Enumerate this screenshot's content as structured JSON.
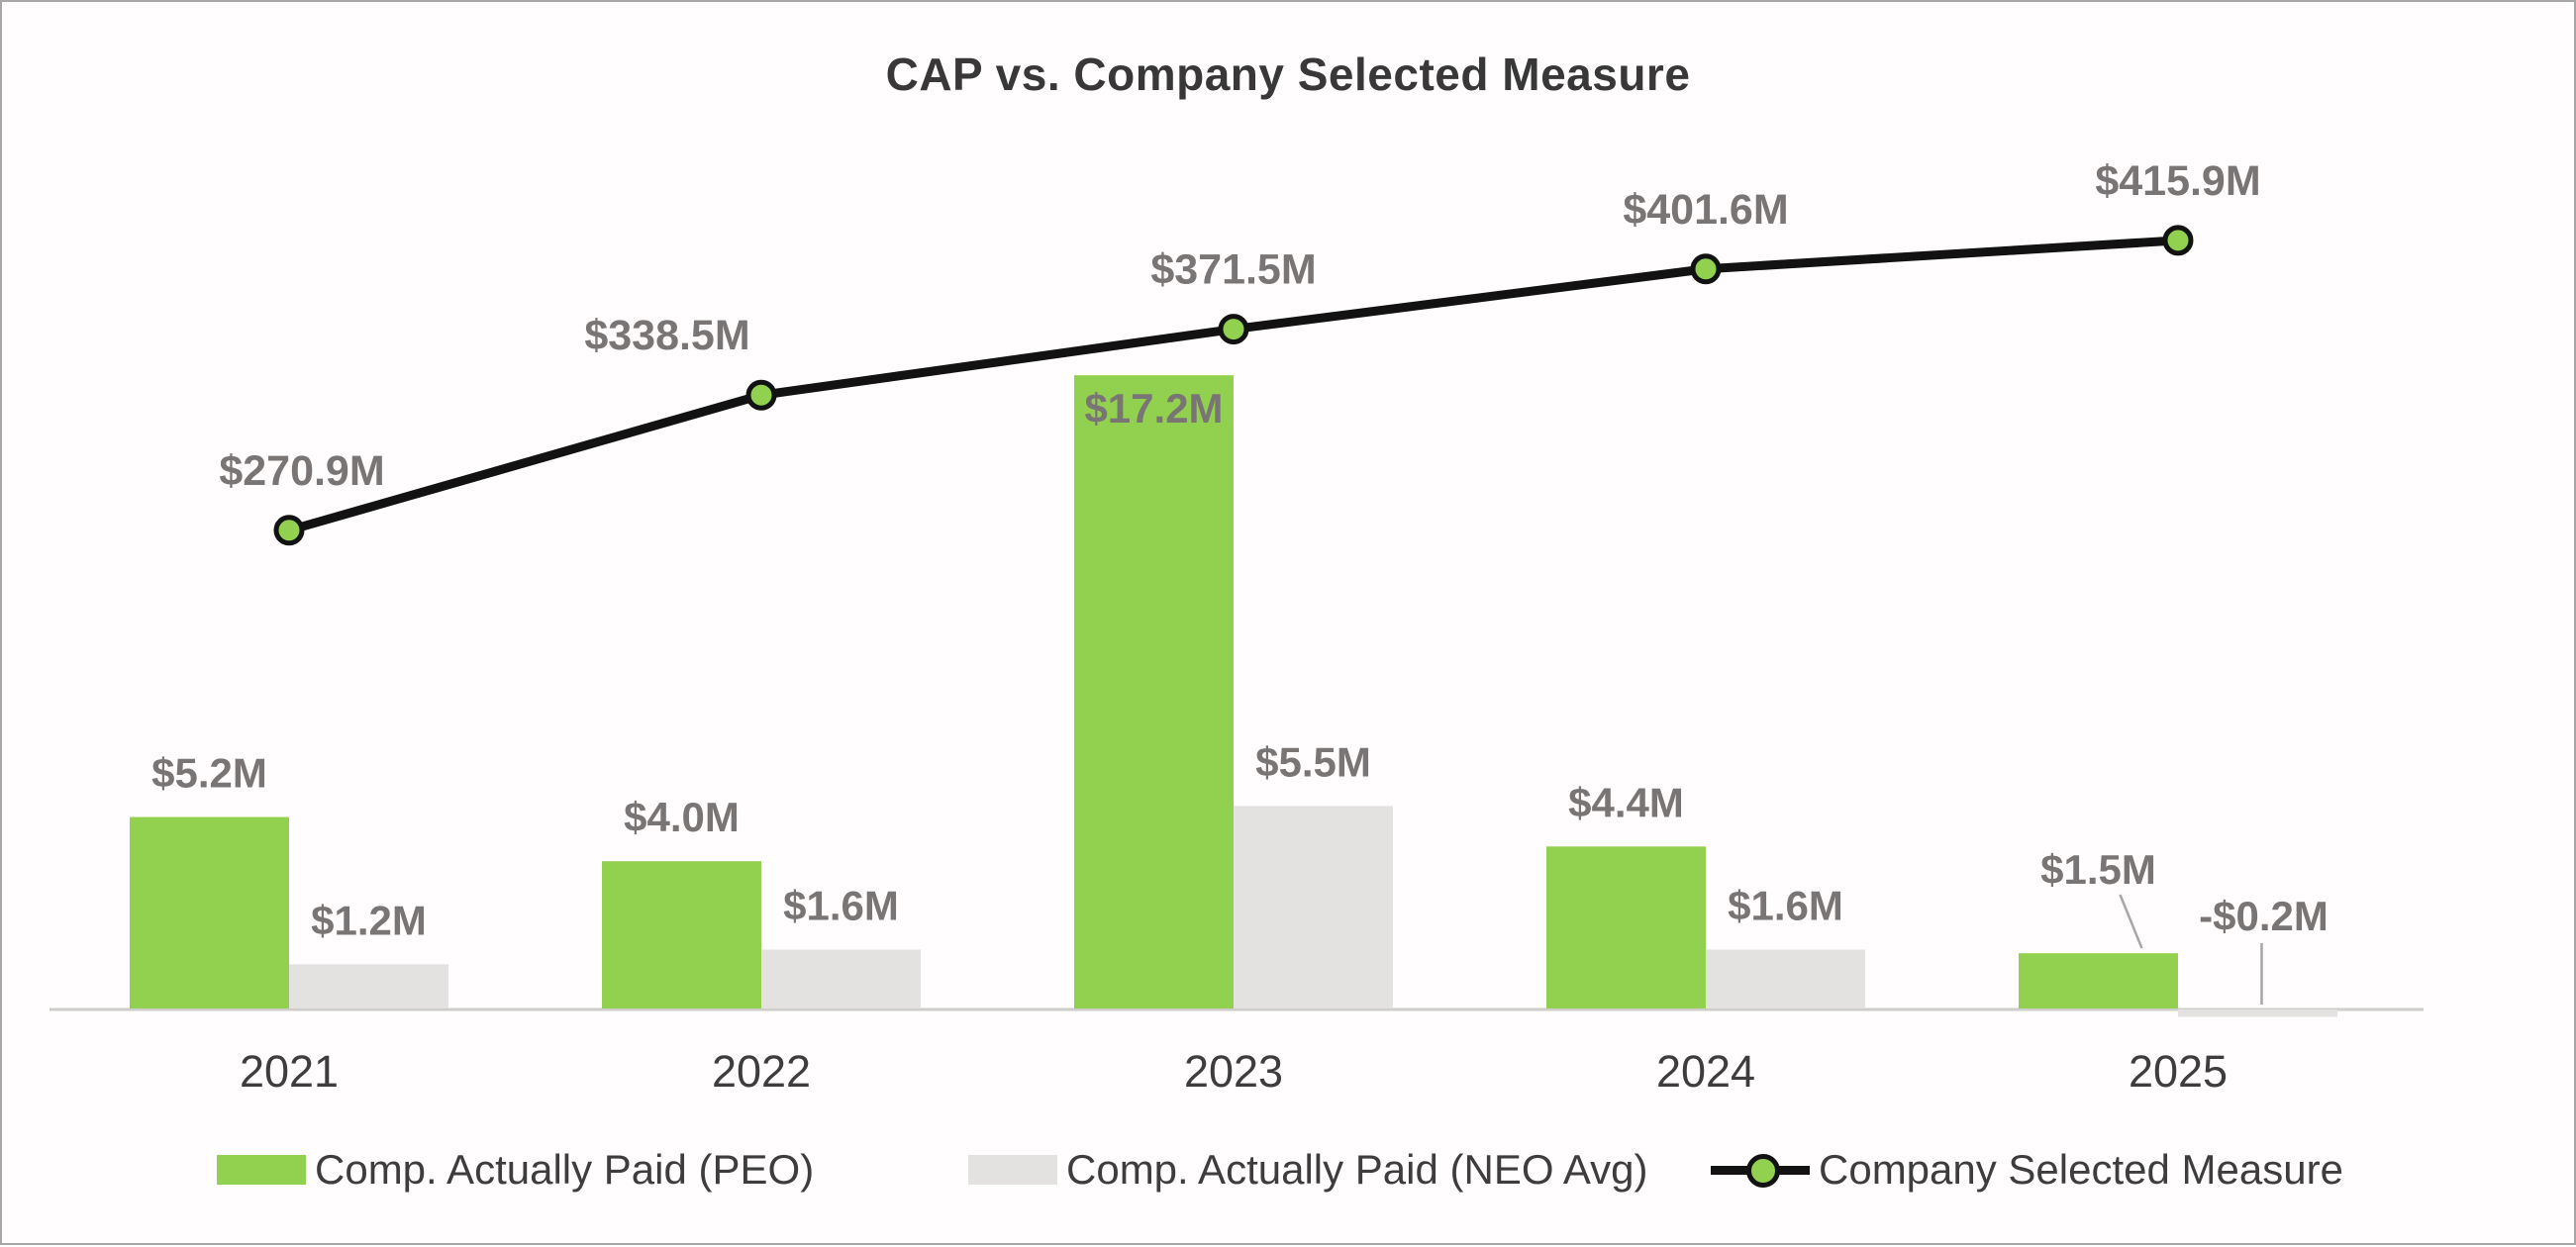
{
  "chart_data": {
    "type": "bar",
    "subtype": "grouped-bars-with-line-overlay",
    "title": "CAP vs. Company Selected Measure",
    "categories": [
      "2021",
      "2022",
      "2023",
      "2024",
      "2025"
    ],
    "series": [
      {
        "name": "Comp. Actually Paid (PEO)",
        "type": "bar",
        "color": "#92d050",
        "values": [
          5.2,
          4.0,
          17.2,
          4.4,
          1.5
        ],
        "labels": [
          "$5.2M",
          "$4.0M",
          "$17.2M",
          "$4.4M",
          "$1.5M"
        ],
        "label_pos": [
          "above",
          "above",
          "inside",
          "above",
          "leader"
        ]
      },
      {
        "name": "Comp. Actually Paid (NEO Avg)",
        "type": "bar",
        "color": "#e4e1e1",
        "values": [
          1.2,
          1.6,
          5.5,
          1.6,
          -0.2
        ],
        "labels": [
          "$1.2M",
          "$1.6M",
          "$5.5M",
          "$1.6M",
          "-$0.2M"
        ],
        "label_pos": [
          "above",
          "above",
          "above",
          "above",
          "leader"
        ]
      },
      {
        "name": "Company Selected Measure",
        "type": "line",
        "color": "#121212",
        "marker_fill": "#92d050",
        "values": [
          270.9,
          338.5,
          371.5,
          401.6,
          415.9
        ],
        "labels": [
          "$270.9M",
          "$338.5M",
          "$371.5M",
          "$401.6M",
          "$415.9M"
        ],
        "label_dx": [
          13,
          -95,
          0,
          0,
          0
        ]
      }
    ],
    "axes": {
      "x_ticks": [
        "2021",
        "2022",
        "2023",
        "2024",
        "2025"
      ],
      "y_axis_visible": false,
      "gridlines": false,
      "bar_value_unit": "$M",
      "line_value_unit": "$M"
    },
    "legend": {
      "position": "bottom"
    },
    "colors": {
      "bar_label": "#7a7575",
      "line_label": "#7a7575",
      "axis_label": "#3d3d3d",
      "title": "#383838",
      "axis_line": "#cfcccc",
      "leader_line": "#a6a6a6"
    }
  }
}
